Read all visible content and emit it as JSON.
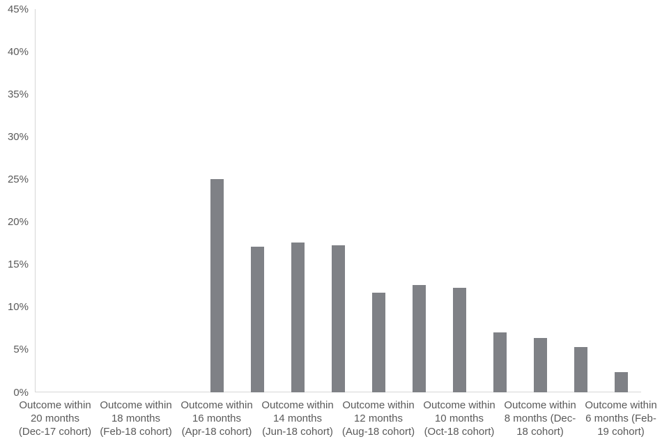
{
  "chart_data": {
    "type": "bar",
    "title": "",
    "xlabel": "",
    "ylabel": "",
    "ylim": [
      0,
      45
    ],
    "grid": false,
    "legend": "none",
    "bar_color": "#7f8186",
    "axis_line_color": "#d6d6d6",
    "text_color": "#595959",
    "num_slots": 15,
    "y_axis": {
      "tick_values": [
        0,
        5,
        10,
        15,
        20,
        25,
        30,
        35,
        40,
        45
      ],
      "tick_labels": [
        "0%",
        "5%",
        "10%",
        "15%",
        "20%",
        "25%",
        "30%",
        "35%",
        "40%",
        "45%"
      ]
    },
    "categories": [
      "Outcome within 20 months (Dec-17 cohort)",
      "",
      "Outcome within 18 months (Feb-18 cohort)",
      "",
      "Outcome within 16 months (Apr-18 cohort)",
      "",
      "Outcome within 14 months (Jun-18 cohort)",
      "",
      "Outcome within 12 months (Aug-18 cohort)",
      "",
      "Outcome within 10 months (Oct-18 cohort)",
      "",
      "Outcome within 8 months (Dec-18 cohort)",
      "",
      "Outcome within 6 months (Feb-19 cohort)"
    ],
    "values": [
      null,
      null,
      null,
      null,
      25.0,
      17.1,
      17.6,
      17.3,
      11.7,
      12.6,
      12.3,
      7.0,
      6.4,
      5.3,
      2.4
    ],
    "x_tick_labels": [
      {
        "slot_index": 0,
        "lines": [
          "Outcome within",
          "20 months",
          "(Dec-17 cohort)"
        ]
      },
      {
        "slot_index": 2,
        "lines": [
          "Outcome within",
          "18 months",
          "(Feb-18 cohort)"
        ]
      },
      {
        "slot_index": 4,
        "lines": [
          "Outcome within",
          "16 months",
          "(Apr-18 cohort)"
        ]
      },
      {
        "slot_index": 6,
        "lines": [
          "Outcome within",
          "14 months",
          "(Jun-18 cohort)"
        ]
      },
      {
        "slot_index": 8,
        "lines": [
          "Outcome within",
          "12 months",
          "(Aug-18 cohort)"
        ]
      },
      {
        "slot_index": 10,
        "lines": [
          "Outcome within",
          "10 months",
          "(Oct-18 cohort)"
        ]
      },
      {
        "slot_index": 12,
        "lines": [
          "Outcome within",
          "8 months (Dec-",
          "18 cohort)"
        ]
      },
      {
        "slot_index": 14,
        "lines": [
          "Outcome within",
          "6 months (Feb-",
          "19 cohort)"
        ]
      }
    ]
  }
}
